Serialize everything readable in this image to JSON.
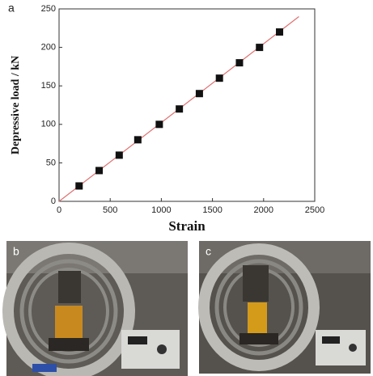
{
  "chart_data": {
    "type": "scatter",
    "panel_label": "a",
    "xlabel": "Strain",
    "ylabel": "Depressive load / kN",
    "xlim": [
      0,
      2500
    ],
    "ylim": [
      0,
      250
    ],
    "xticks": [
      0,
      500,
      1000,
      1500,
      2000,
      2500
    ],
    "yticks": [
      0,
      50,
      100,
      150,
      200,
      250
    ],
    "series": [
      {
        "color": "#111111",
        "marker": "square",
        "x": [
          196,
          392,
          588,
          770,
          980,
          1176,
          1372,
          1568,
          1764,
          1960,
          2156
        ],
        "values": [
          20,
          40,
          60,
          80,
          100,
          120,
          140,
          160,
          180,
          200,
          220
        ]
      },
      {
        "color": "#e07070",
        "marker": "line",
        "x": [
          0,
          2345
        ],
        "values": [
          0,
          240
        ]
      }
    ]
  },
  "photos": [
    {
      "label": "b"
    },
    {
      "label": "c"
    }
  ]
}
